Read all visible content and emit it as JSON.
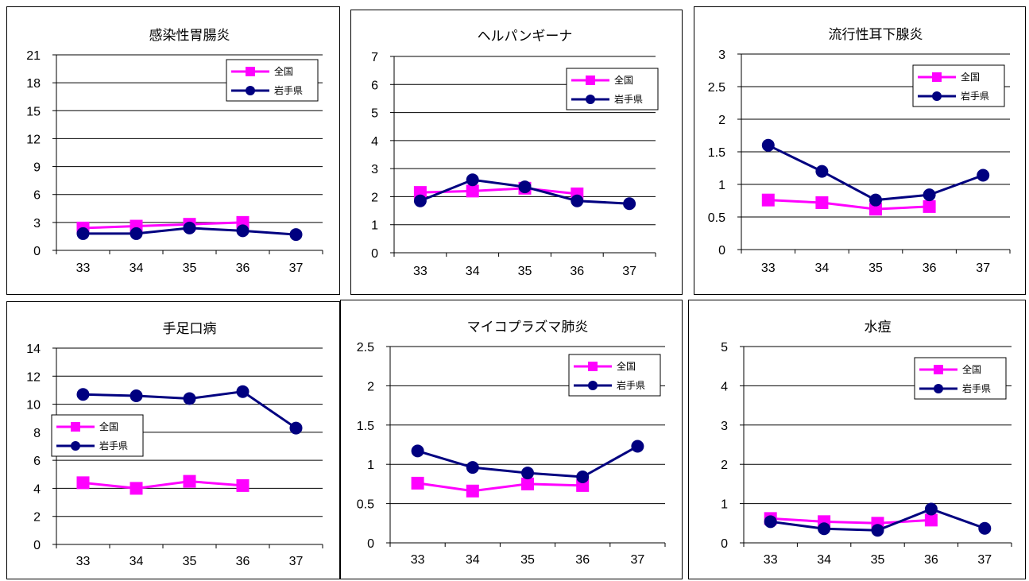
{
  "chart_data": [
    {
      "type": "line",
      "title": "感染性胃腸炎",
      "categories": [
        "33",
        "34",
        "35",
        "36",
        "37"
      ],
      "yticks": [
        "0",
        "3",
        "6",
        "9",
        "12",
        "15",
        "18",
        "21"
      ],
      "ylim": [
        0,
        21
      ],
      "grid": true,
      "legend_placement": "top-right",
      "series": [
        {
          "name": "全国",
          "color": "#ff00ff",
          "marker": "square",
          "values": [
            2.4,
            2.6,
            2.8,
            3.0,
            null
          ]
        },
        {
          "name": "岩手県",
          "color": "#000080",
          "marker": "circle",
          "values": [
            1.8,
            1.8,
            2.4,
            2.1,
            1.7
          ]
        }
      ]
    },
    {
      "type": "line",
      "title": "ヘルパンギーナ",
      "categories": [
        "33",
        "34",
        "35",
        "36",
        "37"
      ],
      "yticks": [
        "0",
        "1",
        "2",
        "3",
        "4",
        "5",
        "6",
        "7"
      ],
      "ylim": [
        0,
        7
      ],
      "grid": true,
      "legend_placement": "top-right",
      "series": [
        {
          "name": "全国",
          "color": "#ff00ff",
          "marker": "square",
          "values": [
            2.15,
            2.2,
            2.3,
            2.1,
            null
          ]
        },
        {
          "name": "岩手県",
          "color": "#000080",
          "marker": "circle",
          "values": [
            1.85,
            2.6,
            2.35,
            1.85,
            1.75
          ]
        }
      ]
    },
    {
      "type": "line",
      "title": "流行性耳下腺炎",
      "categories": [
        "33",
        "34",
        "35",
        "36",
        "37"
      ],
      "yticks": [
        "0",
        "0.5",
        "1",
        "1.5",
        "2",
        "2.5",
        "3"
      ],
      "ylim": [
        0,
        3
      ],
      "grid": true,
      "legend_placement": "top-right",
      "series": [
        {
          "name": "全国",
          "color": "#ff00ff",
          "marker": "square",
          "values": [
            0.76,
            0.72,
            0.62,
            0.66,
            null
          ]
        },
        {
          "name": "岩手県",
          "color": "#000080",
          "marker": "circle",
          "values": [
            1.6,
            1.2,
            0.76,
            0.84,
            1.14
          ]
        }
      ]
    },
    {
      "type": "line",
      "title": "手足口病",
      "categories": [
        "33",
        "34",
        "35",
        "36",
        "37"
      ],
      "yticks": [
        "0",
        "2",
        "4",
        "6",
        "8",
        "10",
        "12",
        "14"
      ],
      "ylim": [
        0,
        14
      ],
      "grid": true,
      "legend_placement": "middle-left",
      "series": [
        {
          "name": "全国",
          "color": "#ff00ff",
          "marker": "square",
          "values": [
            4.4,
            4.0,
            4.5,
            4.2,
            null
          ]
        },
        {
          "name": "岩手県",
          "color": "#000080",
          "marker": "circle",
          "values": [
            10.7,
            10.6,
            10.4,
            10.9,
            8.3
          ]
        }
      ]
    },
    {
      "type": "line",
      "title": "マイコプラズマ肺炎",
      "categories": [
        "33",
        "34",
        "35",
        "36",
        "37"
      ],
      "yticks": [
        "0",
        "0.5",
        "1",
        "1.5",
        "2",
        "2.5"
      ],
      "ylim": [
        0,
        2.5
      ],
      "grid": true,
      "legend_placement": "top-right",
      "series": [
        {
          "name": "全国",
          "color": "#ff00ff",
          "marker": "square",
          "values": [
            0.76,
            0.66,
            0.75,
            0.73,
            null
          ]
        },
        {
          "name": "岩手県",
          "color": "#000080",
          "marker": "circle",
          "values": [
            1.17,
            0.96,
            0.89,
            0.84,
            1.23
          ]
        }
      ]
    },
    {
      "type": "line",
      "title": "水痘",
      "categories": [
        "33",
        "34",
        "35",
        "36",
        "37"
      ],
      "yticks": [
        "0",
        "1",
        "2",
        "3",
        "4",
        "5"
      ],
      "ylim": [
        0,
        5
      ],
      "grid": true,
      "legend_placement": "top-right",
      "series": [
        {
          "name": "全国",
          "color": "#ff00ff",
          "marker": "square",
          "values": [
            0.62,
            0.54,
            0.5,
            0.58,
            null
          ]
        },
        {
          "name": "岩手県",
          "color": "#000080",
          "marker": "circle",
          "values": [
            0.54,
            0.36,
            0.32,
            0.86,
            0.37
          ]
        }
      ]
    }
  ]
}
